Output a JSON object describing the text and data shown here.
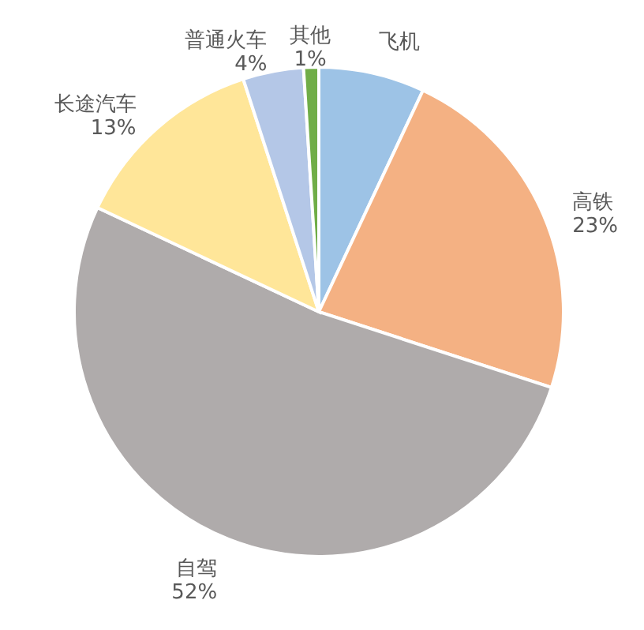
{
  "chart_data": {
    "type": "pie",
    "categories": [
      "飞机",
      "高铁",
      "自驾",
      "长途汽车",
      "普通火车",
      "其他"
    ],
    "values": [
      7,
      23,
      52,
      13,
      4,
      1
    ],
    "value_labels": [
      null,
      "23%",
      "52%",
      "13%",
      "4%",
      "1%"
    ],
    "colors": [
      "#9dc3e6",
      "#f4b183",
      "#afabab",
      "#ffe699",
      "#b4c7e7",
      "#70ad47"
    ]
  }
}
